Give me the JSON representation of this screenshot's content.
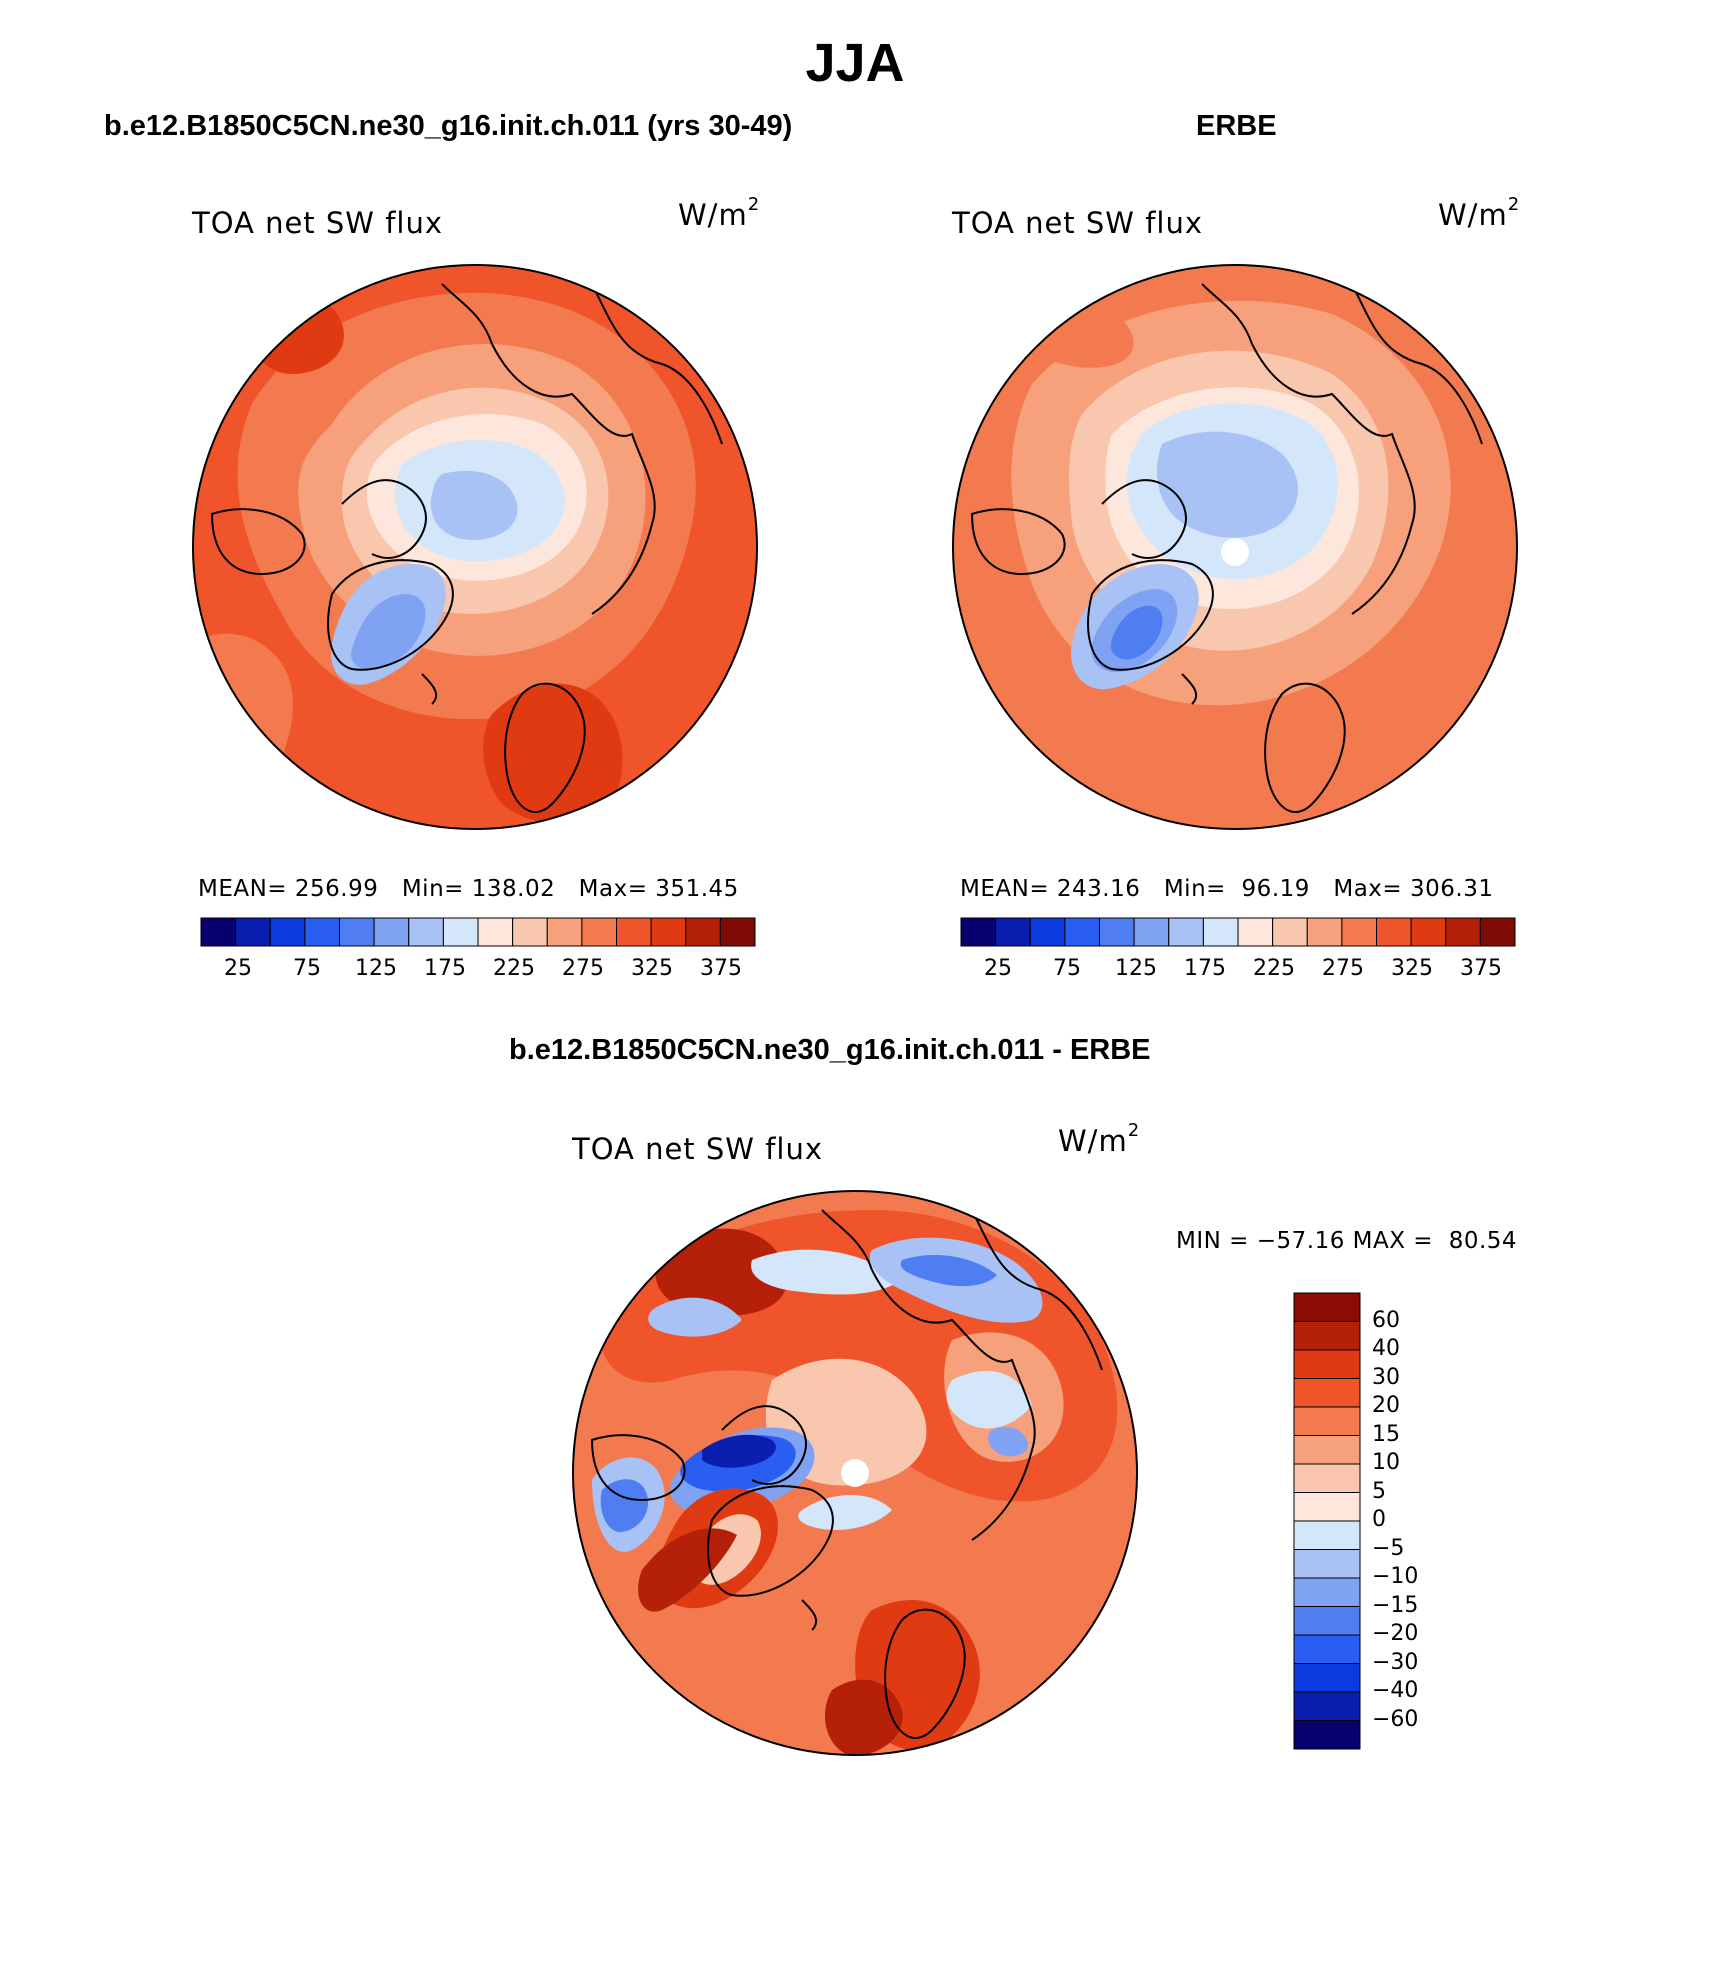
{
  "main_title": "JJA",
  "panels": [
    {
      "title": "b.e12.B1850C5CN.ne30_g16.init.ch.011 (yrs 30-49)",
      "plot_label": "TOA net SW flux",
      "units_base": "W/m",
      "units_exp": "2",
      "stats": {
        "mean_label": "MEAN=",
        "mean": "256.99",
        "min_label": "Min=",
        "min": "138.02",
        "max_label": "Max=",
        "max": "351.45"
      }
    },
    {
      "title": "ERBE",
      "plot_label": "TOA net SW flux",
      "units_base": "W/m",
      "units_exp": "2",
      "stats": {
        "mean_label": "MEAN=",
        "mean": "243.16",
        "min_label": "Min=",
        "min": "96.19",
        "max_label": "Max=",
        "max": "306.31"
      }
    },
    {
      "title": "b.e12.B1850C5CN.ne30_g16.init.ch.011 - ERBE",
      "plot_label": "TOA net SW flux",
      "units_base": "W/m",
      "units_exp": "2",
      "stats_line": "MIN = −57.16 MAX =  80.54"
    }
  ],
  "abs_colorbar": {
    "colors": [
      "#08006e",
      "#0a1fb0",
      "#0c3be0",
      "#2a5ef0",
      "#4f7ef2",
      "#7fa2f2",
      "#a9c2f5",
      "#d4e6fa",
      "#fde7dc",
      "#f9c7ad",
      "#f6a07c",
      "#f37a4f",
      "#f0542a",
      "#e03a12",
      "#b52008",
      "#7e0c05"
    ],
    "tick_labels": [
      "25",
      "75",
      "125",
      "175",
      "225",
      "275",
      "325",
      "375"
    ]
  },
  "diff_colorbar": {
    "colors_top_to_bottom": [
      "#8a0c05",
      "#b52008",
      "#e03a12",
      "#f0542a",
      "#f37a4f",
      "#f6a07c",
      "#f9c7ad",
      "#fde7dc",
      "#d4e6fa",
      "#a9c2f5",
      "#7fa2f2",
      "#4f7ef2",
      "#2a5ef0",
      "#0c3be0",
      "#0a1fb0",
      "#08006e"
    ],
    "tick_labels": [
      "60",
      "40",
      "30",
      "20",
      "15",
      "10",
      "5",
      "0",
      "−5",
      "−10",
      "−15",
      "−20",
      "−30",
      "−40",
      "−60"
    ]
  },
  "map_colors": {
    "ocean_high": "#f0542a",
    "mid_high": "#f37a4f",
    "light_orange": "#f6a07c",
    "peach": "#f9c7ad",
    "cream": "#fde7dc",
    "pale_blue": "#d4e6fa",
    "light_blue": "#a9c2f5",
    "mid_blue": "#7fa2f2",
    "blue": "#4f7ef2",
    "deep_blue": "#2a5ef0",
    "dark_red": "#b52008",
    "red": "#e03a12"
  }
}
